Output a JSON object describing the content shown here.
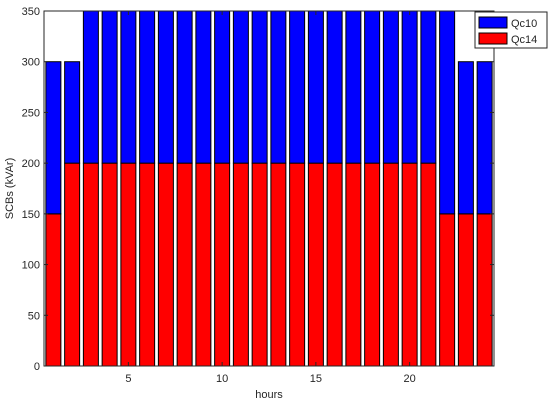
{
  "chart_data": {
    "type": "bar",
    "stacked": true,
    "x": [
      1,
      2,
      3,
      4,
      5,
      6,
      7,
      8,
      9,
      10,
      11,
      12,
      13,
      14,
      15,
      16,
      17,
      18,
      19,
      20,
      21,
      22,
      23,
      24
    ],
    "series": [
      {
        "name": "Qc14",
        "color": "#ff0000",
        "values": [
          150,
          200,
          200,
          200,
          200,
          200,
          200,
          200,
          200,
          200,
          200,
          200,
          200,
          200,
          200,
          200,
          200,
          200,
          200,
          200,
          200,
          150,
          150,
          150
        ]
      },
      {
        "name": "Qc10",
        "color": "#0000ff",
        "values": [
          150,
          100,
          150,
          150,
          150,
          150,
          150,
          150,
          150,
          150,
          150,
          150,
          150,
          150,
          150,
          150,
          150,
          150,
          150,
          150,
          150,
          200,
          150,
          150
        ]
      }
    ],
    "xlabel": "hours",
    "ylabel": "SCBs (kVAr)",
    "xlim": [
      0.5,
      24.5
    ],
    "ylim": [
      0,
      350
    ],
    "xticks": [
      5,
      10,
      15,
      20
    ],
    "yticks": [
      0,
      50,
      100,
      150,
      200,
      250,
      300,
      350
    ],
    "legend": {
      "placement": "top-right",
      "order": [
        "Qc10",
        "Qc14"
      ]
    },
    "grid": false
  }
}
